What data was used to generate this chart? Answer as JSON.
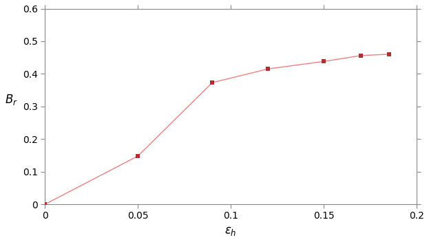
{
  "x": [
    0.0,
    0.05,
    0.09,
    0.12,
    0.15,
    0.17,
    0.185
  ],
  "y": [
    0.0,
    0.148,
    0.373,
    0.415,
    0.438,
    0.456,
    0.46
  ],
  "line_color": "#f08080",
  "marker_color": "#b03030",
  "marker_style": "s",
  "marker_size": 4,
  "linewidth": 1.0,
  "xlabel": "$\\varepsilon_h$",
  "ylabel": "$B_r$",
  "xlim": [
    0.0,
    0.2
  ],
  "ylim": [
    0.0,
    0.6
  ],
  "xticks": [
    0.0,
    0.05,
    0.1,
    0.15,
    0.2
  ],
  "yticks": [
    0.0,
    0.1,
    0.2,
    0.3,
    0.4,
    0.5,
    0.6
  ],
  "xlabel_fontsize": 12,
  "ylabel_fontsize": 12,
  "tick_fontsize": 10,
  "background_color": "#ffffff",
  "spine_color": "#888888"
}
